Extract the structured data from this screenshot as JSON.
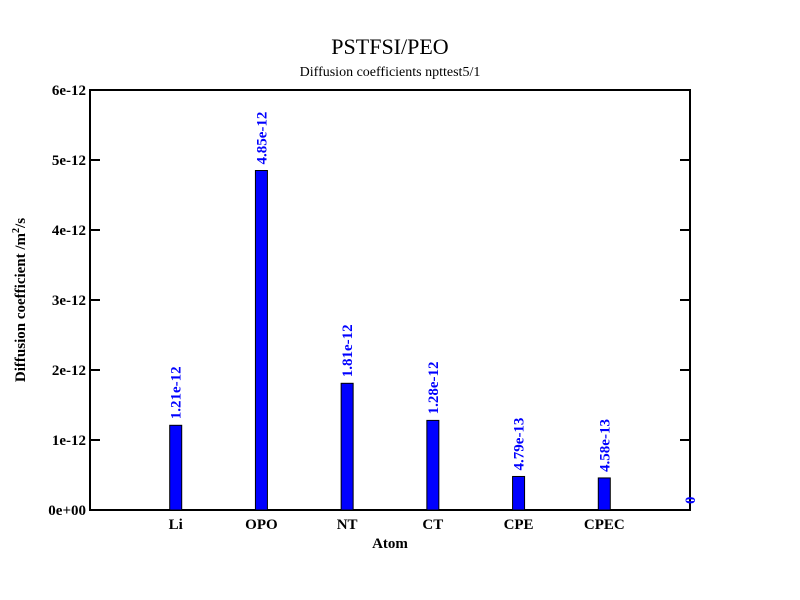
{
  "chart_data": {
    "type": "bar",
    "title": "PSTFSI/PEO",
    "subtitle": "Diffusion coefficients npttest5/1",
    "xlabel": "Atom",
    "ylabel": {
      "text": "Diffusion coefficient /m",
      "sup": "2",
      "tail": "/s"
    },
    "categories": [
      "Li",
      "OPO",
      "NT",
      "CT",
      "CPE",
      "CPEC",
      null
    ],
    "values": [
      1.21e-12,
      4.85e-12,
      1.81e-12,
      1.28e-12,
      4.79e-13,
      4.58e-13,
      0
    ],
    "value_labels": [
      "1.21e-12",
      "4.85e-12",
      "1.81e-12",
      "1.28e-12",
      "4.79e-13",
      "4.58e-13",
      "0"
    ],
    "color": "#0000ff",
    "label_color": "#0000ff",
    "xlim": [
      0,
      7
    ],
    "ylim": [
      0,
      6e-12
    ],
    "yticks": [
      {
        "value": 0,
        "label": "0e+00"
      },
      1e-12,
      2e-12,
      3e-12,
      4e-12,
      5e-12,
      6e-12
    ]
  }
}
